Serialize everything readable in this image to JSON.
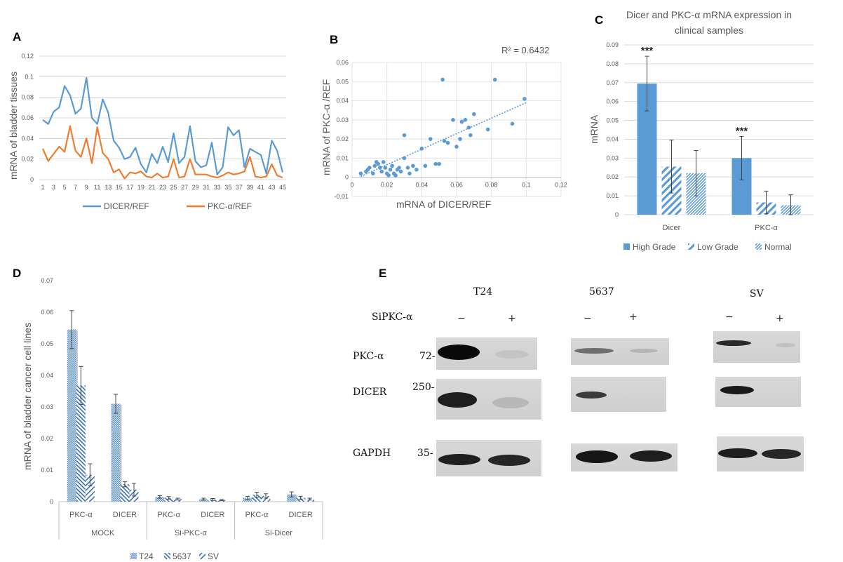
{
  "panels": {
    "A": "A",
    "B": "B",
    "C": "C",
    "D": "D",
    "E": "E"
  },
  "chart_data": [
    {
      "panel": "A",
      "type": "line",
      "title": "",
      "xlabel": "",
      "ylabel": "mRNA of bladder tissues",
      "ylim": [
        0,
        0.12
      ],
      "yticks": [
        "0",
        "0.02",
        "0.04",
        "0.06",
        "0.08",
        "0.1",
        "0.12"
      ],
      "xticks": [
        "1",
        "3",
        "5",
        "7",
        "9",
        "11",
        "13",
        "15",
        "17",
        "19",
        "21",
        "23",
        "25",
        "27",
        "29",
        "31",
        "33",
        "35",
        "37",
        "39",
        "41",
        "43",
        "45"
      ],
      "x": [
        1,
        2,
        3,
        4,
        5,
        6,
        7,
        8,
        9,
        10,
        11,
        12,
        13,
        14,
        15,
        16,
        17,
        18,
        19,
        20,
        21,
        22,
        23,
        24,
        25,
        26,
        27,
        28,
        29,
        30,
        31,
        32,
        33,
        34,
        35,
        36,
        37,
        38,
        39,
        40,
        41,
        42,
        43,
        44,
        45
      ],
      "grid": true,
      "legend_position": "bottom",
      "series": [
        {
          "name": "DICER/REF",
          "color": "#5b9bd5",
          "values": [
            0.058,
            0.054,
            0.066,
            0.07,
            0.091,
            0.082,
            0.064,
            0.069,
            0.099,
            0.06,
            0.054,
            0.078,
            0.065,
            0.038,
            0.031,
            0.02,
            0.022,
            0.031,
            0.015,
            0.007,
            0.025,
            0.016,
            0.032,
            0.017,
            0.045,
            0.016,
            0.022,
            0.052,
            0.018,
            0.012,
            0.014,
            0.036,
            0.005,
            0.012,
            0.051,
            0.043,
            0.048,
            0.012,
            0.03,
            0.027,
            0.024,
            0.006,
            0.038,
            0.028,
            0.007
          ]
        },
        {
          "name": "PKC-α/REF",
          "color": "#ed7d31",
          "values": [
            0.03,
            0.018,
            0.025,
            0.032,
            0.027,
            0.052,
            0.028,
            0.022,
            0.04,
            0.016,
            0.051,
            0.026,
            0.02,
            0.007,
            0.01,
            0.001,
            0.007,
            0.006,
            0.008,
            0.003,
            0.002,
            0.006,
            0.002,
            0.003,
            0.02,
            0.002,
            0.003,
            0.02,
            0.005,
            0.005,
            0.005,
            0.003,
            0.002,
            0.004,
            0.007,
            0.005,
            0.006,
            0.008,
            0.022,
            0.003,
            0.002,
            0.003,
            0.015,
            0.004,
            0.002
          ]
        }
      ]
    },
    {
      "panel": "B",
      "type": "scatter",
      "title": "",
      "xlabel": "mRNA of DICER/REF",
      "ylabel": "mRNA of PKC-α /REF",
      "annotation_text": "R² = 0.6432",
      "xlim": [
        0,
        0.12
      ],
      "ylim": [
        -0.01,
        0.06
      ],
      "xticks": [
        "0",
        "0.02",
        "0.04",
        "0.06",
        "0.08",
        "0.1",
        "0.12"
      ],
      "yticks": [
        "-0.01",
        "0",
        "0.01",
        "0.02",
        "0.03",
        "0.04",
        "0.05",
        "0.06"
      ],
      "grid": true,
      "trendline": {
        "x": [
          0.005,
          0.1
        ],
        "y": [
          0.0005,
          0.039
        ]
      },
      "points": [
        [
          0.005,
          0.002
        ],
        [
          0.008,
          0.003
        ],
        [
          0.009,
          0.004
        ],
        [
          0.01,
          0.005
        ],
        [
          0.012,
          0.002
        ],
        [
          0.013,
          0.006
        ],
        [
          0.014,
          0.008
        ],
        [
          0.015,
          0.007
        ],
        [
          0.016,
          0.005
        ],
        [
          0.017,
          0.003
        ],
        [
          0.018,
          0.008
        ],
        [
          0.019,
          0.005
        ],
        [
          0.02,
          0.002
        ],
        [
          0.021,
          0.001
        ],
        [
          0.022,
          0.004
        ],
        [
          0.023,
          0.006
        ],
        [
          0.024,
          0.002
        ],
        [
          0.025,
          0.001
        ],
        [
          0.026,
          0.004
        ],
        [
          0.027,
          0.005
        ],
        [
          0.028,
          0.003
        ],
        [
          0.03,
          0.022
        ],
        [
          0.03,
          0.01
        ],
        [
          0.032,
          0.005
        ],
        [
          0.033,
          0.002
        ],
        [
          0.035,
          0.006
        ],
        [
          0.037,
          0.004
        ],
        [
          0.04,
          0.015
        ],
        [
          0.042,
          0.006
        ],
        [
          0.045,
          0.02
        ],
        [
          0.048,
          0.007
        ],
        [
          0.05,
          0.007
        ],
        [
          0.052,
          0.051
        ],
        [
          0.053,
          0.019
        ],
        [
          0.055,
          0.018
        ],
        [
          0.058,
          0.03
        ],
        [
          0.06,
          0.016
        ],
        [
          0.062,
          0.02
        ],
        [
          0.063,
          0.029
        ],
        [
          0.065,
          0.03
        ],
        [
          0.067,
          0.026
        ],
        [
          0.068,
          0.022
        ],
        [
          0.07,
          0.033
        ],
        [
          0.078,
          0.025
        ],
        [
          0.082,
          0.051
        ],
        [
          0.092,
          0.028
        ],
        [
          0.099,
          0.041
        ]
      ]
    },
    {
      "panel": "C",
      "type": "bar",
      "title": "Dicer and PKC-α mRNA expression in clinical samples",
      "title_lines": [
        "Dicer and PKC-α mRNA expression in",
        "clinical samples"
      ],
      "xlabel": "",
      "ylabel": "mRNA",
      "ylim": [
        0,
        0.09
      ],
      "yticks": [
        "0",
        "0.01",
        "0.02",
        "0.03",
        "0.04",
        "0.05",
        "0.06",
        "0.07",
        "0.08",
        "0.09"
      ],
      "categories": [
        "Dicer",
        "PKC-α"
      ],
      "grid": true,
      "legend_position": "bottom",
      "significance": [
        "***",
        "***"
      ],
      "series": [
        {
          "name": "High Grade",
          "pattern": "solid",
          "values": [
            0.0695,
            0.03
          ],
          "errors": [
            0.0145,
            0.0115
          ]
        },
        {
          "name": "Low Grade",
          "pattern": "wide-diagonal",
          "values": [
            0.0255,
            0.0065
          ],
          "errors": [
            0.014,
            0.006
          ]
        },
        {
          "name": "Normal",
          "pattern": "dense-diagonal",
          "values": [
            0.022,
            0.005
          ],
          "errors": [
            0.012,
            0.0055
          ]
        }
      ]
    },
    {
      "panel": "D",
      "type": "bar",
      "title": "",
      "xlabel": "",
      "ylabel": "mRNA of bladder cancer cell lines",
      "ylim": [
        0,
        0.07
      ],
      "yticks": [
        "0",
        "0.01",
        "0.02",
        "0.03",
        "0.04",
        "0.05",
        "0.06",
        "0.07"
      ],
      "groups": [
        "MOCK",
        "Si-PKC-α",
        "Si-Dicer"
      ],
      "categories": [
        "PKC-α",
        "DICER",
        "PKC-α",
        "DICER",
        "PKC-α",
        "DICER"
      ],
      "grid": false,
      "legend_position": "bottom",
      "series": [
        {
          "name": "T24",
          "pattern": "checker",
          "values": [
            0.0545,
            0.031,
            0.0015,
            0.0008,
            0.0012,
            0.0023
          ],
          "errors": [
            0.006,
            0.003,
            0.0004,
            0.0003,
            0.0005,
            0.0008
          ]
        },
        {
          "name": "5637",
          "pattern": "back-diagonal",
          "values": [
            0.0368,
            0.0055,
            0.0012,
            0.0007,
            0.0022,
            0.0012
          ],
          "errors": [
            0.006,
            0.0008,
            0.0004,
            0.0003,
            0.0008,
            0.0005
          ]
        },
        {
          "name": "SV",
          "pattern": "forward-diagonal",
          "values": [
            0.0085,
            0.0038,
            0.0008,
            0.0005,
            0.0018,
            0.0008
          ],
          "errors": [
            0.0035,
            0.002,
            0.0003,
            0.0002,
            0.0007,
            0.0003
          ]
        }
      ]
    }
  ],
  "western_blot": {
    "panel": "E",
    "treatment_label": "SiPKC-α",
    "signs": [
      "−",
      "+"
    ],
    "cell_lines": [
      "T24",
      "5637",
      "SV"
    ],
    "rows": [
      "PKC-α",
      "DICER",
      "GAPDH"
    ],
    "markers": [
      "72-",
      "250-",
      "35-"
    ]
  }
}
